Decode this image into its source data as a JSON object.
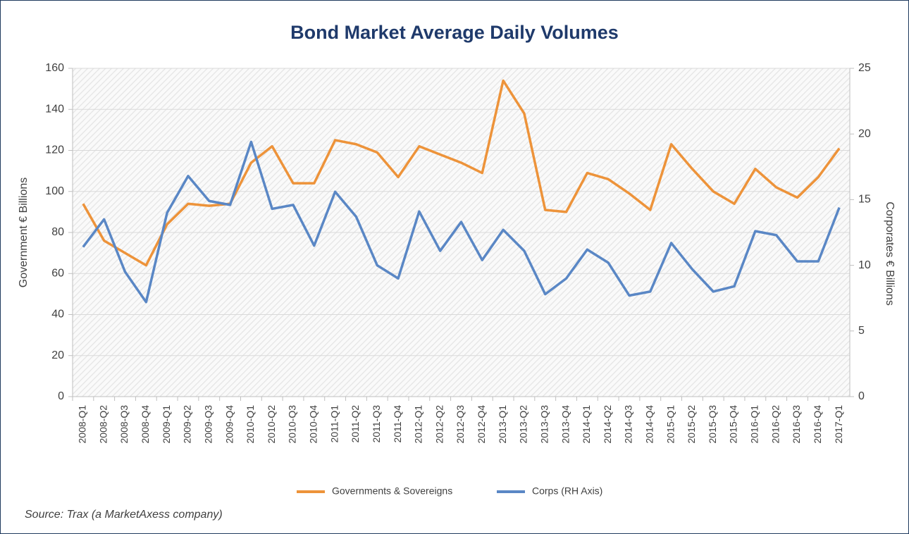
{
  "chart_data": {
    "type": "line",
    "title": "Bond Market Average Daily Volumes",
    "y_label": "Government € Billions",
    "y2_label": "Corporates € Billions",
    "source": "Source: Trax (a MarketAxess company)",
    "categories": [
      "2008-Q1",
      "2008-Q2",
      "2008-Q3",
      "2008-Q4",
      "2009-Q1",
      "2009-Q2",
      "2009-Q3",
      "2009-Q4",
      "2010-Q1",
      "2010-Q2",
      "2010-Q3",
      "2010-Q4",
      "2011-Q1",
      "2011-Q2",
      "2011-Q3",
      "2011-Q4",
      "2012-Q1",
      "2012-Q2",
      "2012-Q3",
      "2012-Q4",
      "2013-Q1",
      "2013-Q2",
      "2013-Q3",
      "2013-Q4",
      "2014-Q1",
      "2014-Q2",
      "2014-Q3",
      "2014-Q4",
      "2015-Q1",
      "2015-Q2",
      "2015-Q3",
      "2015-Q4",
      "2016-Q1",
      "2016-Q2",
      "2016-Q3",
      "2016-Q4",
      "2017-Q1"
    ],
    "series": [
      {
        "name": "Governments & Sovereigns",
        "color": "#ed933a",
        "axis": "y",
        "values": [
          94,
          76,
          70,
          64,
          84,
          94,
          93,
          94,
          114,
          122,
          104,
          104,
          125,
          123,
          119,
          107,
          122,
          118,
          114,
          109,
          154,
          138,
          91,
          90,
          109,
          106,
          99,
          91,
          123,
          111,
          100,
          94,
          111,
          102,
          97,
          107,
          121
        ]
      },
      {
        "name": "Corps (RH Axis)",
        "color": "#5a87c5",
        "axis": "y2",
        "values": [
          11.4,
          13.5,
          9.5,
          7.2,
          14.0,
          16.8,
          14.9,
          14.6,
          19.4,
          14.3,
          14.6,
          11.5,
          15.6,
          13.7,
          10.0,
          9.0,
          14.1,
          11.1,
          13.3,
          10.4,
          12.7,
          11.1,
          7.8,
          9.0,
          11.2,
          10.2,
          7.7,
          8.0,
          11.7,
          9.7,
          8.0,
          8.4,
          12.6,
          12.3,
          10.3,
          10.3,
          14.4
        ]
      }
    ],
    "ylim": [
      0,
      160
    ],
    "yticks": [
      0,
      20,
      40,
      60,
      80,
      100,
      120,
      140,
      160
    ],
    "y2lim": [
      0,
      25
    ],
    "y2ticks": [
      0,
      5,
      10,
      15,
      20,
      25
    ],
    "grid": true,
    "legend": "bottom"
  }
}
